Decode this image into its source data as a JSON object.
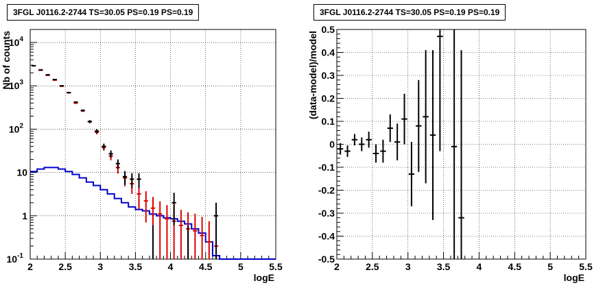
{
  "chart_data": [
    {
      "type": "step-histogram-with-errorbars",
      "title": "3FGL J0116.2-2744 TS=30.05 PS=0.19 PS=0.19",
      "xlabel": "logE",
      "ylabel": "Nb of counts",
      "xlim": [
        2,
        5.5
      ],
      "ylim": [
        0.1,
        20000
      ],
      "yscale": "log",
      "grid": true,
      "x_ticks": [
        "2",
        "2.5",
        "3",
        "3.5",
        "4",
        "4.5",
        "5",
        "5.5"
      ],
      "y_ticks": [
        {
          "value": 0.1,
          "label": "10",
          "sup": "-1"
        },
        {
          "value": 1,
          "label": "1",
          "sup": ""
        },
        {
          "value": 10,
          "label": "10",
          "sup": ""
        },
        {
          "value": 100,
          "label": "10",
          "sup": "2"
        },
        {
          "value": 1000,
          "label": "10",
          "sup": "3"
        },
        {
          "value": 10000,
          "label": "10",
          "sup": "4"
        }
      ],
      "series": [
        {
          "role": "data",
          "color": "#000000",
          "x": [
            2.05,
            2.15,
            2.25,
            2.35,
            2.45,
            2.55,
            2.65,
            2.75,
            2.85,
            2.95,
            3.05,
            3.15,
            3.25,
            3.35,
            3.45,
            3.55,
            3.65,
            3.75,
            3.85,
            3.95,
            4.05,
            4.15,
            4.25,
            4.35,
            4.45,
            4.55,
            4.65
          ],
          "y": [
            2900,
            2300,
            1800,
            1400,
            1000,
            700,
            420,
            270,
            150,
            90,
            40,
            27,
            16,
            8,
            7,
            7,
            0,
            0,
            0,
            0,
            2,
            0,
            0,
            0,
            0,
            0,
            1
          ],
          "err": [
            54,
            48,
            42,
            37,
            32,
            26,
            20,
            16,
            12,
            9.5,
            6.3,
            5.2,
            4,
            2.8,
            2.6,
            2.6,
            0,
            0,
            0,
            0,
            1.4,
            0,
            0,
            0,
            0,
            0,
            1
          ]
        },
        {
          "role": "model",
          "color": "#dd0000",
          "x": [
            2.05,
            2.15,
            2.25,
            2.35,
            2.45,
            2.55,
            2.65,
            2.75,
            2.85,
            2.95,
            3.05,
            3.15,
            3.25,
            3.35,
            3.45,
            3.55,
            3.65,
            3.75,
            3.85,
            3.95,
            4.05,
            4.15,
            4.25,
            4.35,
            4.45,
            4.55,
            4.65
          ],
          "y": [
            2900,
            2350,
            1750,
            1350,
            980,
            690,
            400,
            265,
            148,
            85,
            38,
            24,
            13,
            7.5,
            5.5,
            3.2,
            2.2,
            1.5,
            1.1,
            0.85,
            0.75,
            0.6,
            0.5,
            0.45,
            0.35,
            0.25,
            0.2
          ],
          "err": [
            54,
            48,
            42,
            37,
            31,
            26,
            20,
            16,
            12,
            9.2,
            6.2,
            4.9,
            3.6,
            2.7,
            2.3,
            1.8,
            1.5,
            1.22,
            1.05,
            0.92,
            0.87,
            0.77,
            0.71,
            0.67,
            0.59,
            0.5,
            0.45
          ]
        },
        {
          "role": "background",
          "color": "#0000cc",
          "edges": [
            2.0,
            2.1,
            2.2,
            2.3,
            2.4,
            2.5,
            2.6,
            2.7,
            2.8,
            2.9,
            3.0,
            3.1,
            3.2,
            3.3,
            3.4,
            3.5,
            3.6,
            3.7,
            3.8,
            3.9,
            4.0,
            4.1,
            4.2,
            4.3,
            4.4,
            4.5,
            4.6,
            4.7,
            4.8,
            4.9,
            5.0,
            5.1,
            5.2,
            5.3,
            5.4,
            5.5
          ],
          "y": [
            10.5,
            12,
            13,
            13,
            12,
            10.5,
            9,
            7.5,
            6,
            5,
            4,
            3.2,
            2.5,
            2,
            1.6,
            1.4,
            1.3,
            1.1,
            1.0,
            0.9,
            0.85,
            0.75,
            0.65,
            0.5,
            0.4,
            0.25,
            0.12,
            0.1,
            0.1,
            0.1,
            0.1,
            0.1,
            0.1,
            0.1,
            0.1
          ]
        }
      ]
    },
    {
      "type": "scatter-with-errorbars",
      "title": "3FGL J0116.2-2744 TS=30.05 PS=0.19 PS=0.19",
      "xlabel": "logE",
      "ylabel": "(data-model)/model",
      "xlim": [
        2,
        5.5
      ],
      "ylim": [
        -0.5,
        0.5
      ],
      "grid": true,
      "x_ticks": [
        "2",
        "2.5",
        "3",
        "3.5",
        "4",
        "4.5",
        "5",
        "5.5"
      ],
      "y_ticks": [
        "-0.5",
        "-0.4",
        "-0.3",
        "-0.2",
        "-0.1",
        "0",
        "0.1",
        "0.2",
        "0.3",
        "0.4",
        "0.5"
      ],
      "series": [
        {
          "color": "#000000",
          "x": [
            2.05,
            2.15,
            2.25,
            2.35,
            2.45,
            2.55,
            2.65,
            2.75,
            2.85,
            2.95,
            3.05,
            3.15,
            3.25,
            3.35,
            3.45,
            3.65,
            3.75
          ],
          "y": [
            -0.02,
            -0.03,
            0.02,
            0.0,
            0.02,
            -0.04,
            -0.03,
            0.07,
            0.01,
            0.11,
            -0.13,
            0.08,
            0.12,
            0.04,
            0.47,
            -0.01,
            -0.32
          ],
          "err": [
            0.025,
            0.025,
            0.025,
            0.03,
            0.035,
            0.04,
            0.05,
            0.06,
            0.08,
            0.11,
            0.14,
            0.2,
            0.29,
            0.37,
            0.5,
            0.6,
            0.73
          ]
        }
      ]
    }
  ]
}
